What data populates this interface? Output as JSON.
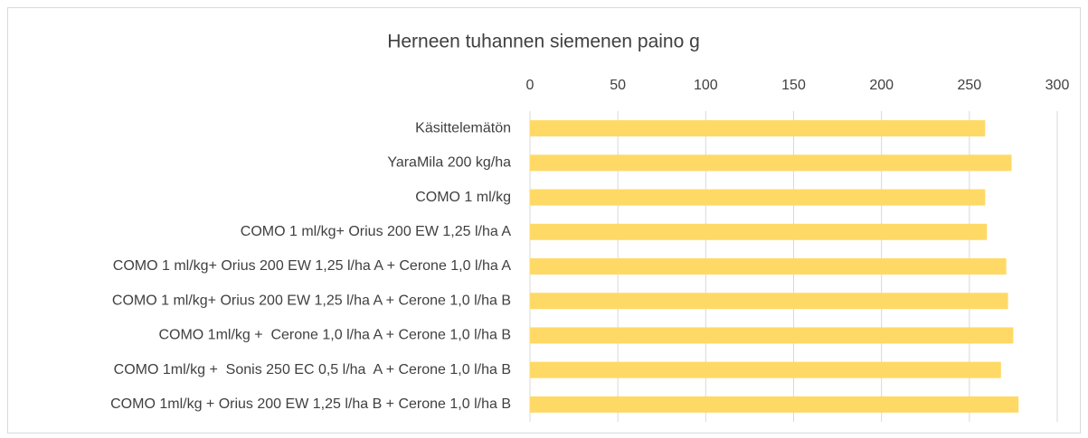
{
  "chart_data": {
    "type": "bar",
    "orientation": "horizontal",
    "title": "Herneen tuhannen siemenen paino g",
    "categories": [
      "Käsittelemätön",
      "YaraMila 200 kg/ha",
      "COMO 1 ml/kg",
      "COMO 1 ml/kg+ Orius 200 EW 1,25 l/ha A",
      "COMO 1 ml/kg+ Orius 200 EW 1,25 l/ha A + Cerone 1,0 l/ha A",
      "COMO 1 ml/kg+ Orius 200 EW 1,25 l/ha A + Cerone 1,0 l/ha B",
      "COMO 1ml/kg +  Cerone 1,0 l/ha A + Cerone 1,0 l/ha B",
      "COMO 1ml/kg +  Sonis 250 EC 0,5 l/ha  A + Cerone 1,0 l/ha B",
      "COMO 1ml/kg + Orius 200 EW 1,25 l/ha B + Cerone 1,0 l/ha B"
    ],
    "values": [
      259,
      274,
      259,
      260,
      271,
      272,
      275,
      268,
      278
    ],
    "color": "#ffd966",
    "xlim": [
      0,
      300
    ],
    "xticks": [
      0,
      50,
      100,
      150,
      200,
      250,
      300
    ],
    "grid": true
  }
}
